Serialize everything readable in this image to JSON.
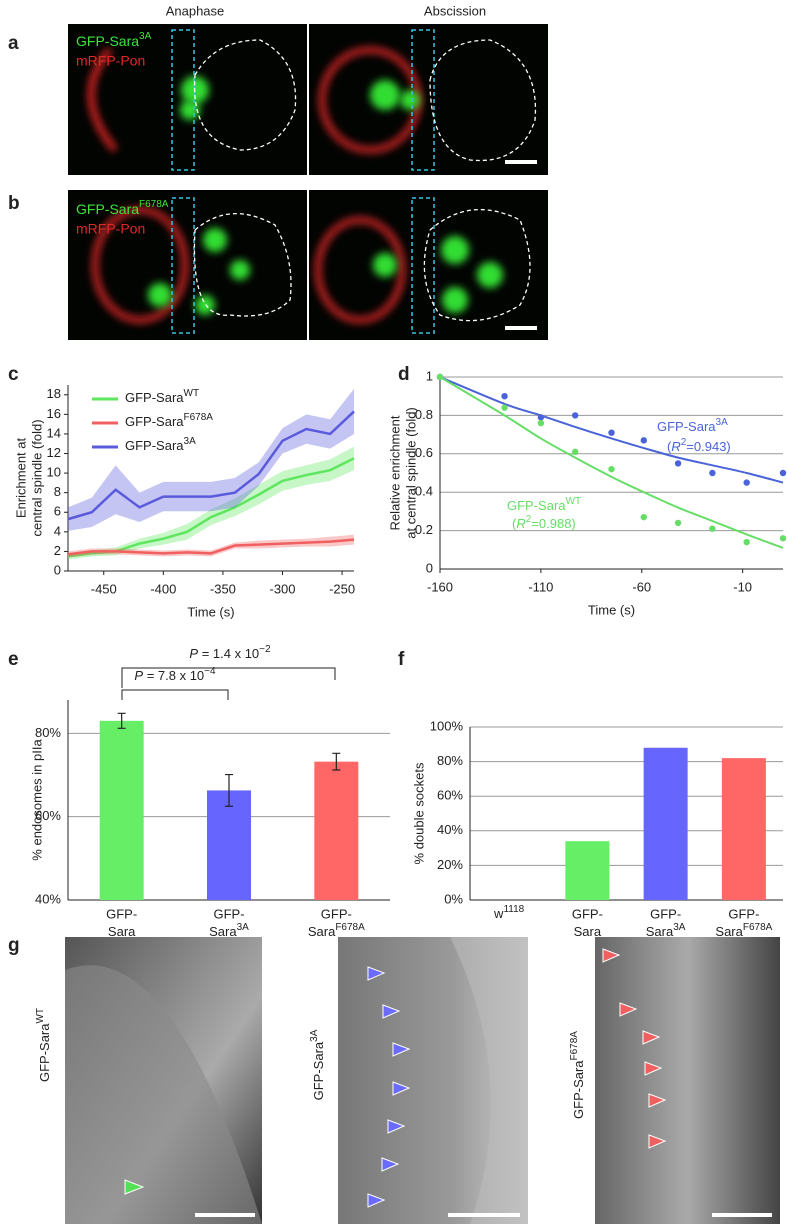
{
  "panels": {
    "a": {
      "letter": "a",
      "columns": [
        "Anaphase",
        "Abscission"
      ],
      "labels": [
        {
          "base": "GFP-Sara",
          "sup": "3A"
        },
        "mRFP-Pon"
      ]
    },
    "b": {
      "letter": "b",
      "labels": [
        {
          "base": "GFP-Sara",
          "sup": "F678A"
        },
        "mRFP-Pon"
      ]
    },
    "g": {
      "letter": "g",
      "labels": [
        {
          "base": "GFP-Sara",
          "sup": "WT"
        },
        {
          "base": "GFP-Sara",
          "sup": "3A"
        },
        {
          "base": "GFP-Sara",
          "sup": "F678A"
        }
      ]
    }
  },
  "chart_data": [
    {
      "panel": "c",
      "type": "line",
      "ylabel": [
        "Enrichment at",
        "central spindle (fold)"
      ],
      "xlabel": "Time (s)",
      "x": [
        -480,
        -460,
        -440,
        -420,
        -400,
        -380,
        -360,
        -340,
        -320,
        -300,
        -280,
        -260,
        -240
      ],
      "xlim": [
        -480,
        -240
      ],
      "xticks": [
        -450,
        -400,
        -350,
        -300,
        -250
      ],
      "ylim": [
        0,
        19
      ],
      "yticks": [
        0,
        2,
        4,
        6,
        8,
        10,
        12,
        14,
        16,
        18
      ],
      "legend": "upper left",
      "series": [
        {
          "name": {
            "base": "GFP-Sara",
            "sup": "WT"
          },
          "color": "#5ee65e",
          "values": [
            1.5,
            1.8,
            2.0,
            2.8,
            3.3,
            4.0,
            5.5,
            6.5,
            7.8,
            9.2,
            9.8,
            10.3,
            11.5
          ],
          "errors": [
            0.3,
            0.3,
            0.4,
            0.5,
            0.6,
            0.8,
            0.8,
            0.9,
            1.0,
            1.0,
            1.0,
            1.1,
            1.2
          ]
        },
        {
          "name": {
            "base": "GFP-Sara",
            "sup": "F678A"
          },
          "color": "#f06060",
          "values": [
            1.7,
            2.0,
            2.0,
            1.9,
            1.8,
            1.9,
            1.8,
            2.6,
            2.7,
            2.8,
            2.9,
            3.0,
            3.2
          ],
          "errors": [
            0.3,
            0.3,
            0.3,
            0.3,
            0.3,
            0.3,
            0.3,
            0.3,
            0.4,
            0.4,
            0.4,
            0.5,
            0.5
          ]
        },
        {
          "name": {
            "base": "GFP-Sara",
            "sup": "3A"
          },
          "color": "#5a5adc",
          "values": [
            5.3,
            6.0,
            8.3,
            6.5,
            7.6,
            7.6,
            7.6,
            8.0,
            9.9,
            13.3,
            14.5,
            14.0,
            16.3
          ],
          "errors": [
            1.2,
            1.5,
            2.5,
            1.5,
            1.5,
            1.5,
            1.5,
            1.5,
            1.2,
            1.3,
            1.5,
            1.5,
            2.3
          ]
        }
      ]
    },
    {
      "panel": "d",
      "type": "scatter",
      "ylabel": [
        "Relative enrichment",
        "at central spindle (fold)"
      ],
      "xlabel": "Time (s)",
      "x": [
        -160,
        -128,
        -110,
        -93,
        -75,
        -59,
        -42,
        -25,
        -8,
        10
      ],
      "xlim": [
        -160,
        10
      ],
      "xticks": [
        -160,
        -110,
        -60,
        -10
      ],
      "ylim": [
        0,
        1
      ],
      "yticks": [
        0,
        0.2,
        0.4,
        0.6,
        0.8,
        1
      ],
      "grid": true,
      "series": [
        {
          "name": {
            "base": "GFP-Sara",
            "sup": "3A"
          },
          "fit_label": {
            "pre": "(",
            "var": "R",
            "sup": "2",
            "post": "=0.943)"
          },
          "color": "#4a63d8",
          "values": [
            1,
            0.9,
            0.79,
            0.8,
            0.71,
            0.67,
            0.55,
            0.5,
            0.45,
            0.5
          ],
          "fit": [
            1,
            0.86,
            0.8,
            0.74,
            0.68,
            0.63,
            0.58,
            0.54,
            0.5,
            0.45
          ]
        },
        {
          "name": {
            "base": "GFP-Sara",
            "sup": "WT"
          },
          "fit_label": {
            "pre": "(",
            "var": "R",
            "sup": "2",
            "post": "=0.988)"
          },
          "color": "#66dd66",
          "values": [
            1,
            0.84,
            0.76,
            0.61,
            0.52,
            0.27,
            0.24,
            0.21,
            0.14,
            0.16
          ],
          "fit": [
            1,
            0.8,
            0.68,
            0.58,
            0.48,
            0.4,
            0.32,
            0.25,
            0.18,
            0.11
          ]
        }
      ]
    },
    {
      "panel": "e",
      "type": "bar",
      "ylabel": [
        "% endosomes in pIIa"
      ],
      "categories": [
        {
          "top": "GFP-",
          "bottom": "Sara"
        },
        {
          "top": "GFP-",
          "bottom": "Sara",
          "sup": "3A"
        },
        {
          "top": "GFP-",
          "bottom": "Sara",
          "sup": "F678A"
        }
      ],
      "values": [
        83,
        66.3,
        73.2
      ],
      "errors": [
        1.8,
        3.8,
        2.0
      ],
      "colors": [
        "#66ee66",
        "#6666ff",
        "#ff6666"
      ],
      "ylim": [
        40,
        88
      ],
      "yticks": [
        {
          "value": 40,
          "label": "40%"
        },
        {
          "value": 60,
          "label": "60%"
        },
        {
          "value": 80,
          "label": "80%"
        }
      ],
      "grid": true,
      "annotations": [
        {
          "var": "P",
          "mid": " = 7.8 x 10",
          "sup": "−4"
        },
        {
          "var": "P",
          "mid": " = 1.4 x 10",
          "sup": "−2"
        }
      ]
    },
    {
      "panel": "f",
      "type": "bar",
      "ylabel": [
        "% double sockets"
      ],
      "categories": [
        {
          "base": "w",
          "sup": "1118"
        },
        {
          "top": "GFP-",
          "bottom": "Sara"
        },
        {
          "top": "GFP-",
          "bottom": "Sara",
          "sup": "3A"
        },
        {
          "top": "GFP-",
          "bottom": "Sara",
          "sup": "F678A"
        }
      ],
      "values": [
        0,
        34,
        88,
        82
      ],
      "colors": [
        "#888888",
        "#66ee66",
        "#6666ff",
        "#ff6666"
      ],
      "ylim": [
        0,
        100
      ],
      "yticks": [
        {
          "value": 0,
          "label": "0%"
        },
        {
          "value": 20,
          "label": "20%"
        },
        {
          "value": 40,
          "label": "40%"
        },
        {
          "value": 60,
          "label": "60%"
        },
        {
          "value": 80,
          "label": "80%"
        },
        {
          "value": 100,
          "label": "100%"
        }
      ],
      "grid": true
    }
  ]
}
